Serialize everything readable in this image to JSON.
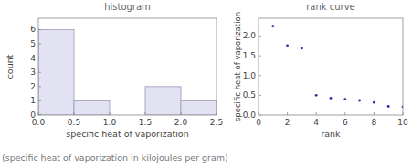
{
  "chart_data": [
    {
      "type": "histogram",
      "title": "histogram",
      "x_label": "specific heat of vaporization",
      "y_label": "count",
      "bins": [
        0,
        0.5,
        1,
        1.5,
        2,
        2.5
      ],
      "counts": [
        6,
        1,
        0,
        2,
        1
      ],
      "color": "#e2e2f2",
      "xlim": [
        0,
        2.5
      ],
      "ylim": [
        0,
        6.8
      ],
      "xticks": [
        {
          "value": 0,
          "label": "0.0"
        },
        {
          "value": 0.5,
          "label": "0.5"
        },
        {
          "value": 1,
          "label": "1.0"
        },
        {
          "value": 1.5,
          "label": "1.5"
        },
        {
          "value": 2,
          "label": "2.0"
        },
        {
          "value": 2.5,
          "label": "2.5"
        }
      ],
      "yticks": [
        0,
        1,
        2,
        3,
        4,
        5,
        6
      ]
    },
    {
      "type": "scatter",
      "title": "rank curve",
      "x_label": "rank",
      "y_label": "specific heat of vaporization",
      "x": [
        1,
        2,
        3,
        4,
        5,
        6,
        7,
        8,
        9,
        10
      ],
      "values": [
        2.25,
        1.76,
        1.69,
        0.5,
        0.43,
        0.4,
        0.37,
        0.32,
        0.22,
        0.21
      ],
      "color": "#2a2aa8",
      "xlim": [
        0,
        10
      ],
      "ylim": [
        0,
        2.45
      ],
      "xticks": [
        0,
        2,
        4,
        6,
        8,
        10
      ],
      "yticks": [
        {
          "value": 0,
          "label": "0.0"
        },
        {
          "value": 0.5,
          "label": "0.5"
        },
        {
          "value": 1,
          "label": "1.0"
        },
        {
          "value": 1.5,
          "label": "1.5"
        },
        {
          "value": 2,
          "label": "2.0"
        }
      ]
    }
  ],
  "caption": "(specific heat of vaporization in kilojoules per gram)"
}
